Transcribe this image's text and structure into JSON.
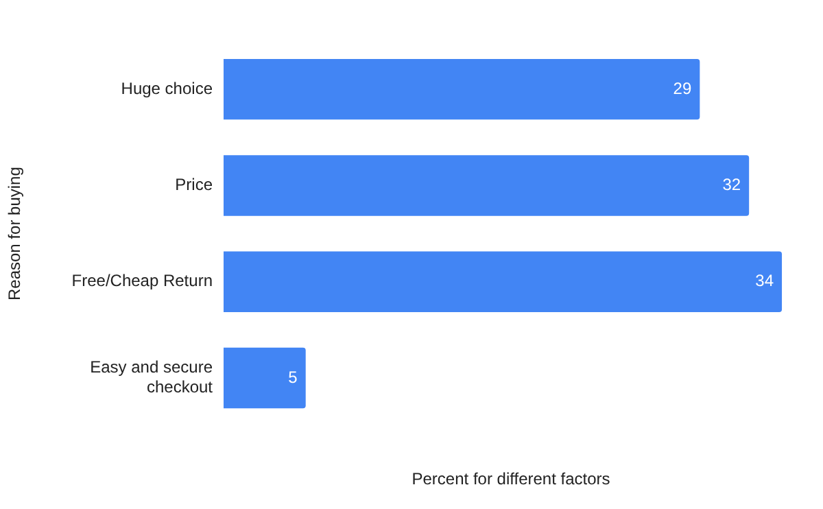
{
  "chart_data": {
    "type": "bar",
    "orientation": "horizontal",
    "categories": [
      "Huge choice",
      "Price",
      "Free/Cheap Return",
      "Easy and secure checkout"
    ],
    "values": [
      29,
      32,
      34,
      5
    ],
    "color": "#4285f4",
    "data_labels": true,
    "xlabel": "Percent for different factors",
    "ylabel": "Reason for buying",
    "grid": false,
    "legend": false
  }
}
